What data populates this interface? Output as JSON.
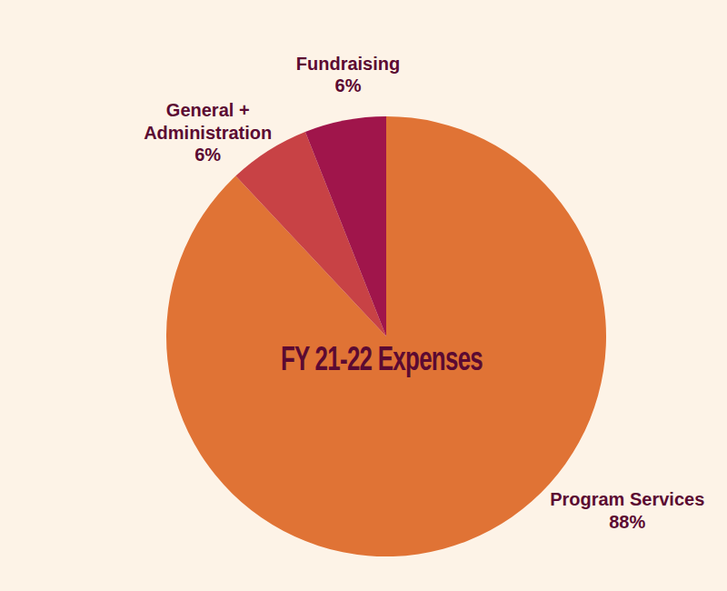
{
  "chart_data": {
    "type": "pie",
    "title": "FY 21-22 Expenses",
    "categories": [
      "Program Services",
      "General + Administration",
      "Fundraising"
    ],
    "values": [
      88,
      6,
      6
    ],
    "value_labels": [
      "88%",
      "6%",
      "6%"
    ],
    "colors": [
      "#e07335",
      "#c84245",
      "#a0154b"
    ],
    "data_labels": true
  }
}
